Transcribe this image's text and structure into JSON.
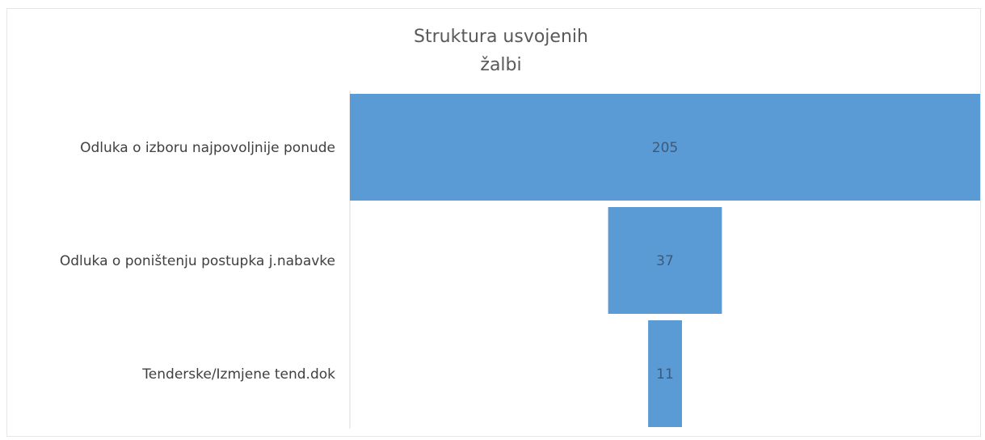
{
  "chart_data": {
    "type": "bar",
    "orientation": "horizontal",
    "style": "funnel",
    "title_lines": [
      "Struktura usvojenih",
      "žalbi"
    ],
    "categories": [
      "Odluka o izboru najpovoljnije ponude",
      "Odluka o poništenju postupka j.nabavke",
      "Tenderske/Izmjene tend.dok"
    ],
    "values": [
      205,
      37,
      11
    ],
    "data_labels": [
      "205",
      "37",
      "11"
    ],
    "bar_color": "#5b9bd5",
    "xlabel": "",
    "ylabel": "",
    "grid": false,
    "legend": "none"
  }
}
